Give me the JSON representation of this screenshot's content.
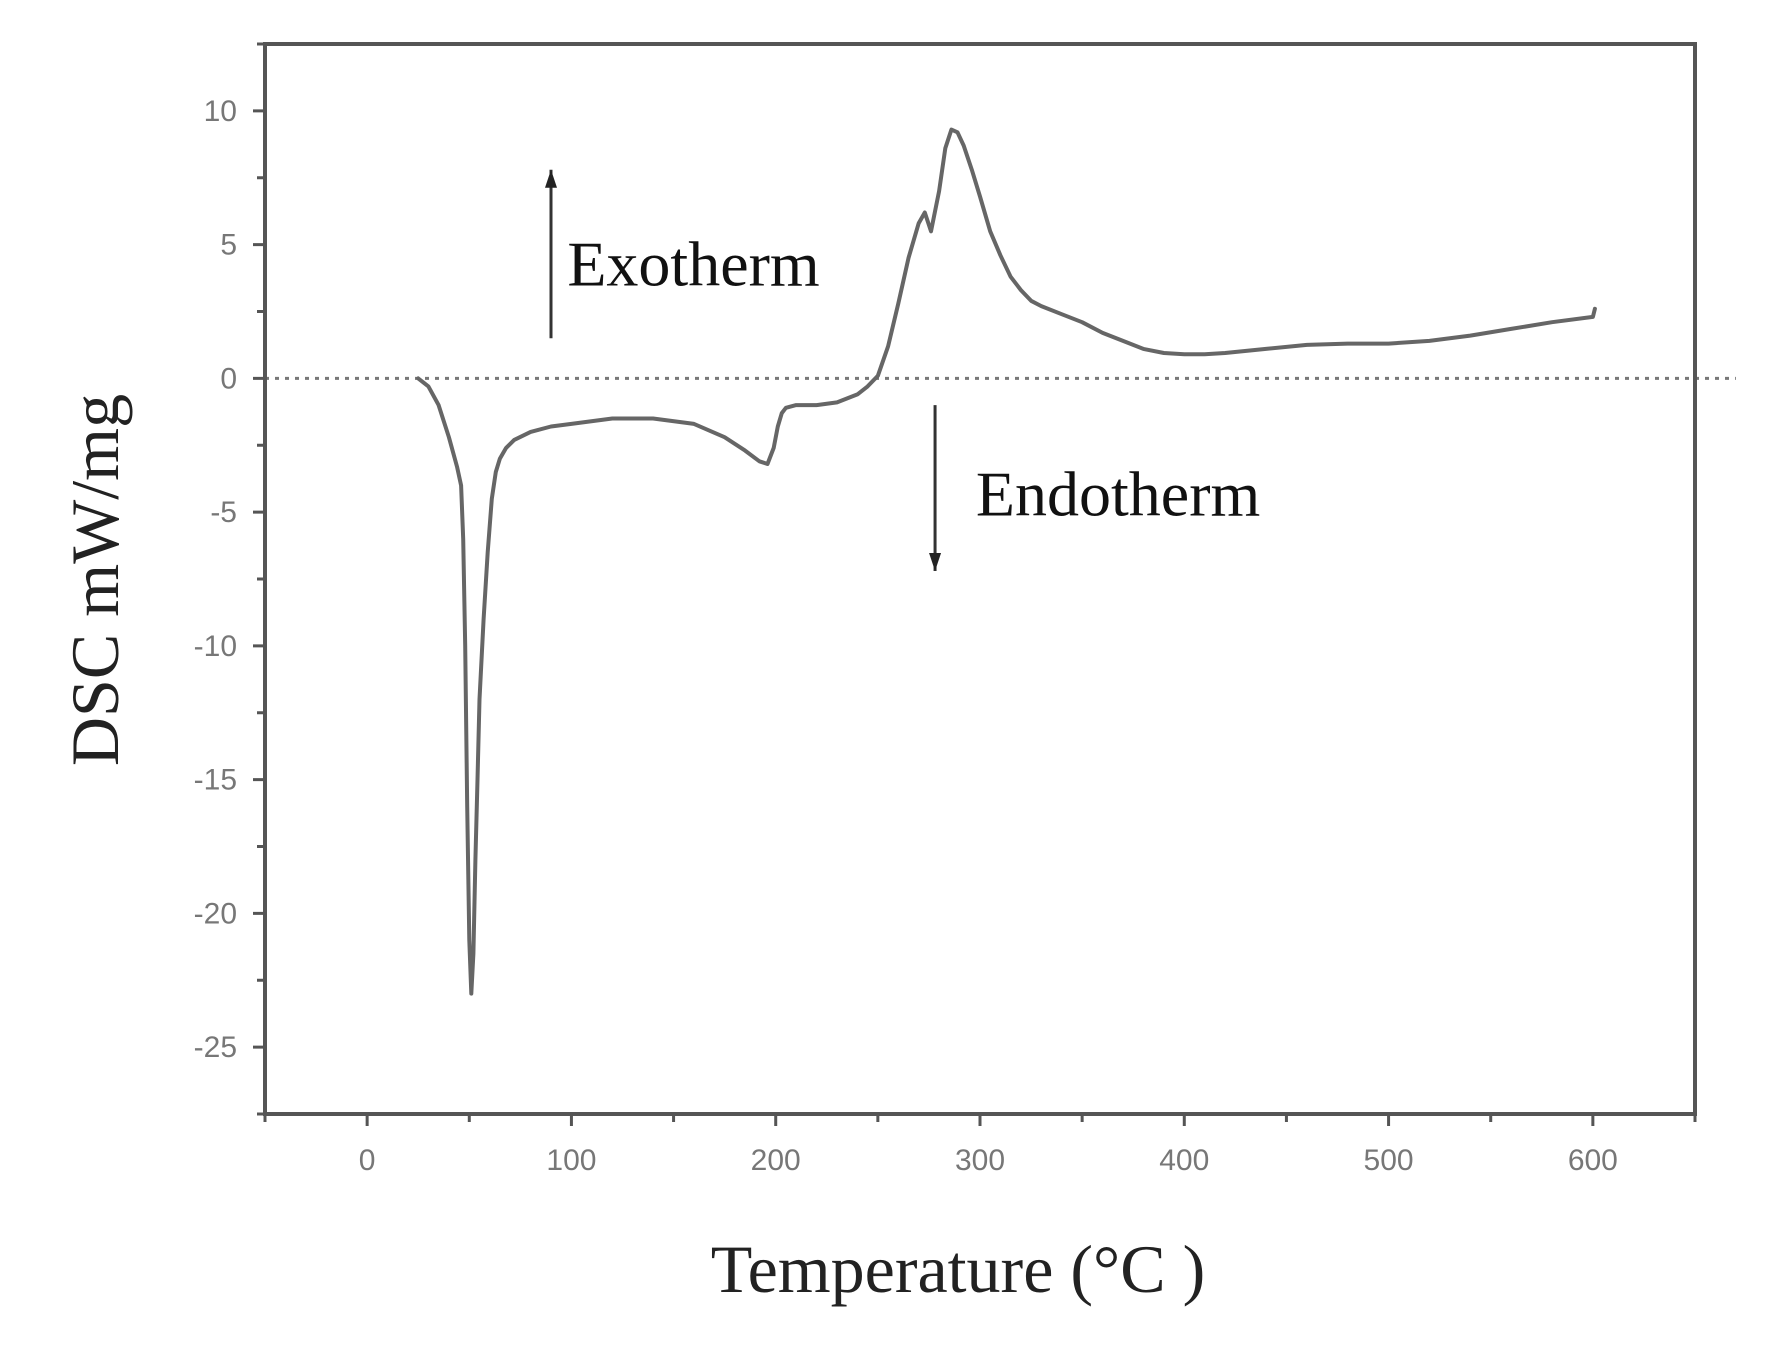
{
  "chart_data": {
    "type": "line",
    "title": "",
    "xlabel": "Temperature (°C )",
    "ylabel": "DSC mW/mg",
    "xlim": [
      -50,
      650
    ],
    "ylim": [
      -27.5,
      12.5
    ],
    "xticks": [
      0,
      100,
      200,
      300,
      400,
      500,
      600
    ],
    "yticks": [
      10,
      5,
      0,
      -5,
      -10,
      -15,
      -20,
      -25
    ],
    "xtick_labels": [
      "0",
      "100",
      "200",
      "300",
      "400",
      "500",
      "600"
    ],
    "ytick_labels": [
      "10",
      "5",
      "0",
      "-5",
      "-10",
      "-15",
      "-20",
      "-25"
    ],
    "grid": false,
    "baseline": {
      "y": 0,
      "style": "dotted",
      "x_range": [
        -50,
        670
      ]
    },
    "series": [
      {
        "color": "#666666",
        "x": [
          25,
          30,
          35,
          40,
          44,
          46,
          47,
          48,
          49,
          50,
          51,
          52,
          53,
          54,
          55,
          57,
          59,
          61,
          63,
          65,
          68,
          72,
          80,
          90,
          100,
          120,
          140,
          160,
          175,
          185,
          192,
          196,
          199,
          201,
          203,
          205,
          210,
          220,
          230,
          240,
          245,
          250,
          255,
          260,
          265,
          270,
          273,
          276,
          280,
          283,
          286,
          289,
          292,
          296,
          300,
          305,
          310,
          315,
          320,
          325,
          330,
          340,
          350,
          360,
          370,
          380,
          390,
          400,
          410,
          420,
          440,
          460,
          480,
          500,
          520,
          540,
          560,
          580,
          600,
          601
        ],
        "y": [
          0,
          -0.3,
          -1.0,
          -2.2,
          -3.3,
          -4.0,
          -6.0,
          -10.0,
          -16.0,
          -21.0,
          -23.0,
          -21.5,
          -18.0,
          -15.0,
          -12.0,
          -9.0,
          -6.5,
          -4.5,
          -3.5,
          -3.0,
          -2.6,
          -2.3,
          -2.0,
          -1.8,
          -1.7,
          -1.5,
          -1.5,
          -1.7,
          -2.2,
          -2.7,
          -3.1,
          -3.2,
          -2.6,
          -1.8,
          -1.3,
          -1.1,
          -1.0,
          -1.0,
          -0.9,
          -0.6,
          -0.3,
          0.1,
          1.2,
          2.8,
          4.5,
          5.8,
          6.2,
          5.5,
          7.0,
          8.6,
          9.3,
          9.2,
          8.7,
          7.8,
          6.8,
          5.5,
          4.6,
          3.8,
          3.3,
          2.9,
          2.7,
          2.4,
          2.1,
          1.7,
          1.4,
          1.1,
          0.95,
          0.9,
          0.9,
          0.95,
          1.1,
          1.25,
          1.3,
          1.3,
          1.4,
          1.6,
          1.85,
          2.1,
          2.3,
          2.6
        ]
      }
    ],
    "annotations": [
      {
        "text": "Exotherm",
        "direction": "up",
        "arrow_x": 90,
        "arrow_y": [
          1.5,
          7.8
        ],
        "text_x": 98,
        "text_y": 4.3
      },
      {
        "text": "Endotherm",
        "direction": "down",
        "arrow_x": 278,
        "arrow_y": [
          -1.0,
          -7.2
        ],
        "text_x": 298,
        "text_y": -4.3
      }
    ]
  }
}
